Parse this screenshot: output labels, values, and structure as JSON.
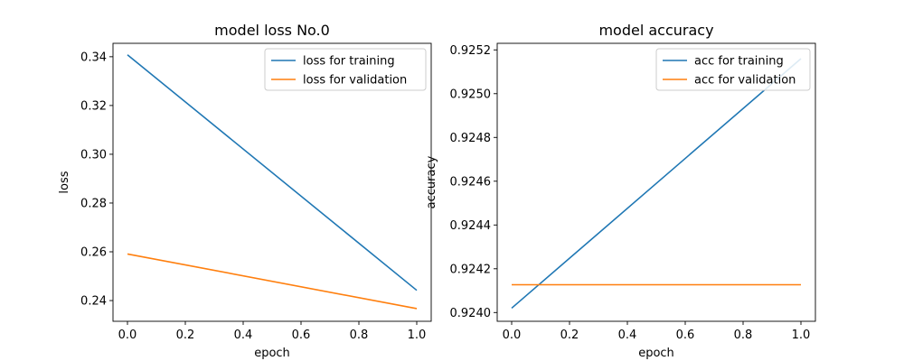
{
  "chart_data": [
    {
      "type": "line",
      "title": "model loss No.0",
      "xlabel": "epoch",
      "ylabel": "loss",
      "x": [
        0,
        1
      ],
      "xlim": [
        -0.05,
        1.05
      ],
      "ylim": [
        0.2315,
        0.3455
      ],
      "xticks": [
        0.0,
        0.2,
        0.4,
        0.6,
        0.8,
        1.0
      ],
      "yticks": [
        0.24,
        0.26,
        0.28,
        0.3,
        0.32,
        0.34
      ],
      "xtick_decimals": 1,
      "ytick_decimals": 2,
      "legend_position": "top-right",
      "grid": false,
      "series": [
        {
          "name": "loss for training",
          "values": [
            0.3408,
            0.2442
          ],
          "color": "#1f77b4"
        },
        {
          "name": "loss for validation",
          "values": [
            0.2591,
            0.2367
          ],
          "color": "#ff7f0e"
        }
      ]
    },
    {
      "type": "line",
      "title": "model accuracy",
      "xlabel": "epoch",
      "ylabel": "accuracy",
      "x": [
        0,
        1
      ],
      "xlim": [
        -0.05,
        1.05
      ],
      "ylim": [
        0.92396,
        0.92523
      ],
      "xticks": [
        0.0,
        0.2,
        0.4,
        0.6,
        0.8,
        1.0
      ],
      "yticks": [
        0.924,
        0.9242,
        0.9244,
        0.9246,
        0.9248,
        0.925,
        0.9252
      ],
      "xtick_decimals": 1,
      "ytick_decimals": 4,
      "legend_position": "top-right",
      "grid": false,
      "series": [
        {
          "name": "acc for training",
          "values": [
            0.92402,
            0.92516
          ],
          "color": "#1f77b4"
        },
        {
          "name": "acc for validation",
          "values": [
            0.924127,
            0.924127
          ],
          "color": "#ff7f0e"
        }
      ]
    }
  ]
}
